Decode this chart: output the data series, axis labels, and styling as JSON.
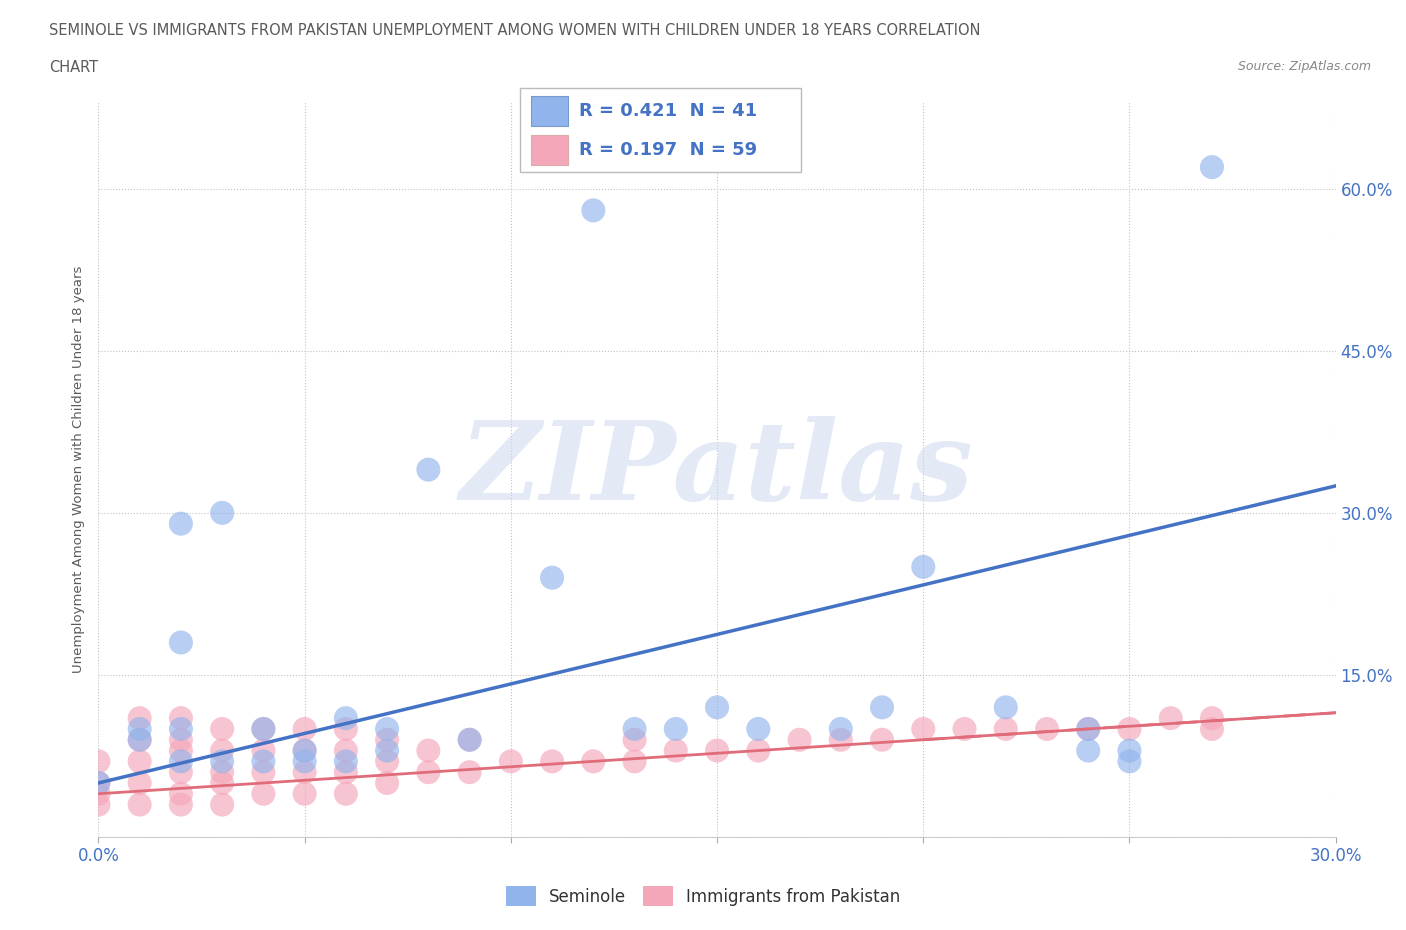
{
  "title_line1": "SEMINOLE VS IMMIGRANTS FROM PAKISTAN UNEMPLOYMENT AMONG WOMEN WITH CHILDREN UNDER 18 YEARS CORRELATION",
  "title_line2": "CHART",
  "source_text": "Source: ZipAtlas.com",
  "ylabel": "Unemployment Among Women with Children Under 18 years",
  "xlim": [
    0.0,
    0.3
  ],
  "ylim": [
    0.0,
    0.68
  ],
  "xticks": [
    0.0,
    0.05,
    0.1,
    0.15,
    0.2,
    0.25,
    0.3
  ],
  "xtick_labels": [
    "0.0%",
    "",
    "",
    "",
    "",
    "",
    "30.0%"
  ],
  "yticks": [
    0.0,
    0.15,
    0.3,
    0.45,
    0.6
  ],
  "ytick_labels": [
    "",
    "15.0%",
    "30.0%",
    "45.0%",
    "60.0%"
  ],
  "seminole_color": "#92b4ec",
  "pakistan_color": "#f4a7b9",
  "seminole_R": 0.421,
  "seminole_N": 41,
  "pakistan_R": 0.197,
  "pakistan_N": 59,
  "trend_color_seminole": "#4472c4",
  "trend_color_pakistan": "#e06c7a",
  "watermark": "ZIPatlas",
  "watermark_color": "#c8d8f0",
  "trend_s_x0": 0.0,
  "trend_s_y0": 0.05,
  "trend_s_x1": 0.3,
  "trend_s_y1": 0.325,
  "trend_p_x0": 0.0,
  "trend_p_y0": 0.04,
  "trend_p_x1": 0.3,
  "trend_p_y1": 0.115,
  "seminole_x": [
    0.0,
    0.01,
    0.01,
    0.02,
    0.02,
    0.02,
    0.02,
    0.03,
    0.03,
    0.04,
    0.04,
    0.05,
    0.05,
    0.06,
    0.06,
    0.07,
    0.07,
    0.08,
    0.09,
    0.11,
    0.12,
    0.13,
    0.14,
    0.15,
    0.16,
    0.18,
    0.19,
    0.2,
    0.22,
    0.24,
    0.24,
    0.25,
    0.25,
    0.27
  ],
  "seminole_y": [
    0.05,
    0.09,
    0.1,
    0.07,
    0.1,
    0.18,
    0.29,
    0.07,
    0.3,
    0.07,
    0.1,
    0.07,
    0.08,
    0.07,
    0.11,
    0.08,
    0.1,
    0.34,
    0.09,
    0.24,
    0.58,
    0.1,
    0.1,
    0.12,
    0.1,
    0.1,
    0.12,
    0.25,
    0.12,
    0.08,
    0.1,
    0.07,
    0.08,
    0.62
  ],
  "pakistan_x": [
    0.0,
    0.0,
    0.0,
    0.0,
    0.01,
    0.01,
    0.01,
    0.01,
    0.01,
    0.02,
    0.02,
    0.02,
    0.02,
    0.02,
    0.02,
    0.03,
    0.03,
    0.03,
    0.03,
    0.03,
    0.04,
    0.04,
    0.04,
    0.04,
    0.05,
    0.05,
    0.05,
    0.05,
    0.06,
    0.06,
    0.06,
    0.06,
    0.07,
    0.07,
    0.07,
    0.08,
    0.08,
    0.09,
    0.09,
    0.1,
    0.11,
    0.12,
    0.13,
    0.13,
    0.14,
    0.15,
    0.16,
    0.17,
    0.18,
    0.19,
    0.2,
    0.21,
    0.22,
    0.23,
    0.24,
    0.25,
    0.26,
    0.27,
    0.27
  ],
  "pakistan_y": [
    0.03,
    0.04,
    0.05,
    0.07,
    0.03,
    0.05,
    0.07,
    0.09,
    0.11,
    0.03,
    0.04,
    0.06,
    0.08,
    0.09,
    0.11,
    0.03,
    0.05,
    0.06,
    0.08,
    0.1,
    0.04,
    0.06,
    0.08,
    0.1,
    0.04,
    0.06,
    0.08,
    0.1,
    0.04,
    0.06,
    0.08,
    0.1,
    0.05,
    0.07,
    0.09,
    0.06,
    0.08,
    0.06,
    0.09,
    0.07,
    0.07,
    0.07,
    0.07,
    0.09,
    0.08,
    0.08,
    0.08,
    0.09,
    0.09,
    0.09,
    0.1,
    0.1,
    0.1,
    0.1,
    0.1,
    0.1,
    0.11,
    0.1,
    0.11
  ]
}
